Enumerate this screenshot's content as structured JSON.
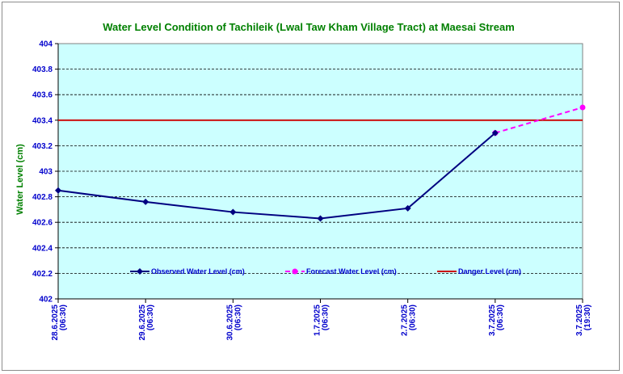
{
  "colors": {
    "title": "#008000",
    "axis_text": "#0000cc",
    "plot_bg": "#ccffff",
    "observed": "#000080",
    "forecast": "#ff00ff",
    "danger": "#cc0000",
    "grid": "#000000"
  },
  "chart_data": {
    "type": "line",
    "title": "Water Level Condition of Tachileik (Lwal Taw Kham Village Tract) at Maesai Stream",
    "ylabel": "Water Level (cm)",
    "xlabel": "",
    "ylim": [
      402,
      404
    ],
    "yticks": [
      "402",
      "402.2",
      "402.4",
      "402.6",
      "402.8",
      "403",
      "403.2",
      "403.4",
      "403.6",
      "403.8",
      "404"
    ],
    "grid": true,
    "legend_position": "bottom-inside",
    "categories": [
      {
        "date": "28.6.2025",
        "time": "(06:30)"
      },
      {
        "date": "29.6.2025",
        "time": "(06:30)"
      },
      {
        "date": "30.6.2025",
        "time": "(06:30)"
      },
      {
        "date": "1.7.2025",
        "time": "(06:30)"
      },
      {
        "date": "2.7.2025",
        "time": "(06:30)"
      },
      {
        "date": "3.7.2025",
        "time": "(06:30)"
      },
      {
        "date": "3.7.2025",
        "time": "(19:30)"
      }
    ],
    "series": [
      {
        "name": "Observed Water Level (cm)",
        "style": "solid-diamond",
        "values": [
          402.85,
          402.76,
          402.68,
          402.63,
          402.71,
          403.3,
          null
        ]
      },
      {
        "name": "Forecast Water Level (cm)",
        "style": "dashed-circle",
        "values": [
          null,
          null,
          null,
          null,
          null,
          403.3,
          403.5
        ]
      },
      {
        "name": "Danger Level (cm)",
        "style": "solid",
        "values": [
          403.4,
          403.4,
          403.4,
          403.4,
          403.4,
          403.4,
          403.4
        ]
      }
    ]
  }
}
